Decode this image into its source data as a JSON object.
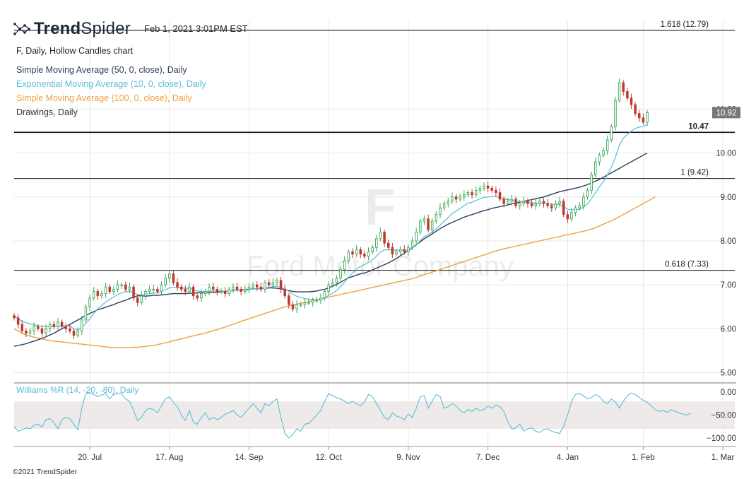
{
  "header": {
    "logo_text_bold": "Trend",
    "logo_text_light": "Spider",
    "timestamp": "Feb 1, 2021 3:01PM EST"
  },
  "legend": {
    "chart_title": "F, Daily, Hollow Candles chart",
    "items": [
      {
        "label": "Simple Moving Average (50, 0, close), Daily",
        "color": "#2c3e5c"
      },
      {
        "label": "Exponential Moving Average (10, 0, close), Daily",
        "color": "#5bbcd8"
      },
      {
        "label": "Simple Moving Average (100, 0, close), Daily",
        "color": "#f0a040"
      },
      {
        "label": "Drawings, Daily",
        "color": "#333333"
      }
    ]
  },
  "watermark": {
    "ticker": "F",
    "company": "Ford Motor Company"
  },
  "footer": {
    "copyright": "©2021 TrendSpider"
  },
  "colors": {
    "up": "#3aa757",
    "down": "#c0392b",
    "grid": "#e6e6e6"
  },
  "chart_data": {
    "type": "candlestick",
    "price_axis": {
      "ylim": [
        4.8,
        13.0
      ],
      "ticks": [
        "5.00",
        "6.00",
        "7.00",
        "8.00",
        "9.00",
        "10.00",
        "11.00"
      ]
    },
    "x_ticks": [
      {
        "label": "20. Jul",
        "index": 19
      },
      {
        "label": "17. Aug",
        "index": 39
      },
      {
        "label": "14. Sep",
        "index": 59
      },
      {
        "label": "12. Oct",
        "index": 79
      },
      {
        "label": "9. Nov",
        "index": 99
      },
      {
        "label": "7. Dec",
        "index": 119
      },
      {
        "label": "4. Jan",
        "index": 139
      },
      {
        "label": "1. Feb",
        "index": 158
      },
      {
        "label": "1. Mar",
        "index": 178
      }
    ],
    "x_range": [
      0,
      181
    ],
    "last_price": {
      "label": "10.92",
      "value": 10.92
    },
    "horizontal_levels": [
      {
        "value": 12.79,
        "label": "1.618 (12.79)",
        "bold": false
      },
      {
        "value": 10.47,
        "label": "10.47",
        "bold": true
      },
      {
        "value": 9.42,
        "label": "1 (9.42)",
        "bold": false
      },
      {
        "value": 7.33,
        "label": "0.618 (7.33)",
        "bold": false
      }
    ],
    "closes": [
      6.25,
      6.1,
      5.95,
      5.9,
      5.95,
      6.05,
      6.0,
      5.9,
      6.0,
      6.1,
      6.05,
      6.15,
      6.05,
      6.0,
      5.95,
      5.85,
      5.95,
      6.2,
      6.5,
      6.7,
      6.85,
      6.75,
      6.8,
      6.95,
      6.85,
      6.9,
      7.0,
      7.0,
      6.9,
      6.95,
      6.7,
      6.6,
      6.75,
      6.85,
      6.9,
      6.9,
      6.85,
      7.0,
      7.15,
      7.25,
      7.05,
      6.95,
      6.9,
      6.85,
      6.95,
      6.75,
      6.7,
      6.8,
      6.85,
      6.95,
      6.9,
      6.85,
      6.85,
      6.8,
      6.9,
      6.95,
      6.9,
      6.85,
      6.9,
      6.95,
      7.0,
      6.95,
      6.9,
      7.05,
      7.0,
      7.05,
      7.1,
      6.9,
      6.75,
      6.55,
      6.45,
      6.55,
      6.55,
      6.6,
      6.6,
      6.65,
      6.65,
      6.7,
      6.85,
      7.0,
      7.05,
      7.15,
      7.35,
      7.55,
      7.75,
      7.7,
      7.8,
      7.7,
      7.65,
      7.75,
      7.85,
      8.05,
      8.2,
      7.95,
      7.85,
      7.7,
      7.75,
      7.8,
      7.75,
      7.85,
      8.0,
      8.2,
      8.45,
      8.5,
      8.25,
      8.45,
      8.6,
      8.75,
      8.85,
      8.9,
      9.0,
      8.95,
      9.0,
      9.05,
      9.1,
      9.05,
      9.15,
      9.2,
      9.25,
      9.2,
      9.15,
      9.1,
      8.95,
      8.85,
      8.9,
      8.95,
      8.8,
      8.85,
      8.9,
      8.85,
      8.8,
      8.85,
      8.9,
      8.85,
      8.8,
      8.75,
      8.85,
      8.9,
      8.6,
      8.5,
      8.65,
      8.75,
      8.8,
      9.0,
      9.15,
      9.5,
      9.8,
      9.95,
      10.05,
      10.3,
      10.6,
      11.2,
      11.6,
      11.4,
      11.25,
      11.1,
      10.9,
      10.8,
      10.7,
      10.92
    ],
    "ema_10": [
      6.28,
      6.24,
      6.17,
      6.14,
      6.11,
      6.09,
      6.07,
      6.06,
      6.05,
      6.05,
      6.05,
      6.06,
      6.07,
      6.07,
      6.06,
      6.0,
      5.98,
      6.03,
      6.12,
      6.23,
      6.35,
      6.45,
      6.53,
      6.61,
      6.67,
      6.72,
      6.78,
      6.82,
      6.84,
      6.86,
      6.82,
      6.78,
      6.77,
      6.78,
      6.8,
      6.81,
      6.82,
      6.85,
      6.89,
      6.93,
      6.94,
      6.94,
      6.93,
      6.92,
      6.92,
      6.89,
      6.86,
      6.85,
      6.85,
      6.86,
      6.86,
      6.86,
      6.86,
      6.85,
      6.86,
      6.87,
      6.88,
      6.88,
      6.88,
      6.89,
      6.91,
      6.91,
      6.91,
      6.93,
      6.94,
      6.96,
      6.97,
      6.94,
      6.91,
      6.85,
      6.78,
      6.74,
      6.71,
      6.69,
      6.67,
      6.67,
      6.66,
      6.67,
      6.7,
      6.76,
      6.81,
      6.87,
      6.96,
      7.06,
      7.18,
      7.27,
      7.36,
      7.42,
      7.46,
      7.51,
      7.57,
      7.65,
      7.75,
      7.79,
      7.8,
      7.79,
      7.79,
      7.79,
      7.79,
      7.8,
      7.84,
      7.9,
      8.01,
      8.1,
      8.14,
      8.2,
      8.27,
      8.36,
      8.45,
      8.53,
      8.62,
      8.68,
      8.74,
      8.8,
      8.86,
      8.88,
      8.92,
      8.96,
      8.99,
      9.0,
      9.01,
      9.01,
      8.98,
      8.96,
      8.94,
      8.93,
      8.91,
      8.89,
      8.88,
      8.88,
      8.87,
      8.86,
      8.86,
      8.86,
      8.85,
      8.83,
      8.82,
      8.83,
      8.78,
      8.72,
      8.71,
      8.71,
      8.72,
      8.77,
      8.84,
      8.96,
      9.1,
      9.23,
      9.35,
      9.5,
      9.67,
      9.9,
      10.18,
      10.34,
      10.42,
      10.5,
      10.56,
      10.59,
      10.6,
      10.66
    ],
    "sma_50": [
      5.6,
      5.62,
      5.64,
      5.66,
      5.69,
      5.72,
      5.75,
      5.78,
      5.82,
      5.86,
      5.9,
      5.95,
      6.0,
      6.05,
      6.1,
      6.15,
      6.2,
      6.25,
      6.3,
      6.35,
      6.39,
      6.43,
      6.46,
      6.49,
      6.52,
      6.55,
      6.59,
      6.62,
      6.65,
      6.69,
      6.72,
      6.75,
      6.75,
      6.74,
      6.75,
      6.76,
      6.76,
      6.77,
      6.78,
      6.79,
      6.8,
      6.8,
      6.8,
      6.8,
      6.81,
      6.81,
      6.82,
      6.82,
      6.82,
      6.82,
      6.83,
      6.83,
      6.84,
      6.85,
      6.86,
      6.87,
      6.88,
      6.88,
      6.89,
      6.9,
      6.91,
      6.91,
      6.92,
      6.92,
      6.93,
      6.93,
      6.92,
      6.91,
      6.89,
      6.87,
      6.85,
      6.84,
      6.84,
      6.84,
      6.84,
      6.85,
      6.86,
      6.88,
      6.9,
      6.93,
      6.97,
      7.01,
      7.06,
      7.11,
      7.16,
      7.19,
      7.22,
      7.25,
      7.27,
      7.3,
      7.34,
      7.38,
      7.42,
      7.46,
      7.5,
      7.55,
      7.6,
      7.66,
      7.72,
      7.78,
      7.84,
      7.91,
      7.98,
      8.05,
      8.1,
      8.16,
      8.22,
      8.28,
      8.33,
      8.38,
      8.42,
      8.46,
      8.5,
      8.54,
      8.57,
      8.6,
      8.63,
      8.66,
      8.69,
      8.71,
      8.74,
      8.76,
      8.78,
      8.8,
      8.82,
      8.84,
      8.86,
      8.88,
      8.9,
      8.92,
      8.94,
      8.96,
      8.98,
      9.0,
      9.03,
      9.06,
      9.09,
      9.12,
      9.14,
      9.16,
      9.18,
      9.2,
      9.22,
      9.25,
      9.28,
      9.32,
      9.36,
      9.4,
      9.45,
      9.5,
      9.55,
      9.6,
      9.65,
      9.7,
      9.75,
      9.8,
      9.85,
      9.9,
      9.95,
      10.0
    ],
    "sma_100": [
      6.0,
      5.95,
      5.9,
      5.86,
      5.83,
      5.81,
      5.79,
      5.77,
      5.75,
      5.73,
      5.72,
      5.71,
      5.7,
      5.69,
      5.68,
      5.67,
      5.66,
      5.65,
      5.64,
      5.63,
      5.62,
      5.61,
      5.6,
      5.59,
      5.58,
      5.57,
      5.57,
      5.57,
      5.57,
      5.57,
      5.58,
      5.58,
      5.59,
      5.6,
      5.61,
      5.62,
      5.64,
      5.66,
      5.68,
      5.7,
      5.73,
      5.75,
      5.77,
      5.79,
      5.82,
      5.84,
      5.86,
      5.88,
      5.9,
      5.93,
      5.96,
      5.98,
      6.01,
      6.04,
      6.07,
      6.1,
      6.13,
      6.17,
      6.2,
      6.23,
      6.26,
      6.29,
      6.32,
      6.35,
      6.38,
      6.41,
      6.44,
      6.47,
      6.5,
      6.52,
      6.54,
      6.56,
      6.58,
      6.6,
      6.62,
      6.64,
      6.66,
      6.68,
      6.7,
      6.72,
      6.74,
      6.76,
      6.78,
      6.8,
      6.82,
      6.84,
      6.86,
      6.88,
      6.9,
      6.92,
      6.94,
      6.96,
      6.98,
      7.0,
      7.02,
      7.04,
      7.06,
      7.08,
      7.1,
      7.12,
      7.14,
      7.17,
      7.2,
      7.23,
      7.26,
      7.29,
      7.32,
      7.35,
      7.38,
      7.41,
      7.44,
      7.47,
      7.5,
      7.53,
      7.56,
      7.59,
      7.62,
      7.65,
      7.68,
      7.71,
      7.74,
      7.77,
      7.8,
      7.82,
      7.84,
      7.86,
      7.88,
      7.9,
      7.92,
      7.94,
      7.96,
      7.98,
      8.0,
      8.02,
      8.04,
      8.06,
      8.08,
      8.1,
      8.12,
      8.14,
      8.16,
      8.18,
      8.2,
      8.22,
      8.24,
      8.27,
      8.3,
      8.34,
      8.38,
      8.42,
      8.46,
      8.5,
      8.55,
      8.6,
      8.65,
      8.7,
      8.75,
      8.8,
      8.85,
      8.9,
      8.95,
      9.0
    ],
    "williams_r": {
      "label": "Williams %R (14, -20, -80), Daily",
      "ylim": [
        -100,
        0
      ],
      "ticks": [
        "0.00",
        "−50.00",
        "−100.00"
      ],
      "band": [
        -80,
        -20
      ],
      "values": [
        -75,
        -85,
        -82,
        -78,
        -80,
        -72,
        -70,
        -76,
        -60,
        -58,
        -66,
        -80,
        -60,
        -55,
        -58,
        -70,
        -82,
        -34,
        -3,
        -2,
        -5,
        -10,
        -6,
        -3,
        -15,
        -5,
        -3,
        -4,
        -15,
        -20,
        -40,
        -62,
        -55,
        -40,
        -35,
        -38,
        -45,
        -30,
        -15,
        -10,
        -22,
        -32,
        -50,
        -62,
        -40,
        -65,
        -70,
        -55,
        -45,
        -60,
        -55,
        -60,
        -55,
        -48,
        -45,
        -40,
        -50,
        -55,
        -45,
        -35,
        -25,
        -35,
        -45,
        -25,
        -30,
        -20,
        -15,
        -55,
        -90,
        -100,
        -92,
        -80,
        -85,
        -70,
        -68,
        -60,
        -50,
        -40,
        -20,
        -3,
        -8,
        -12,
        -15,
        -20,
        -25,
        -20,
        -25,
        -30,
        -22,
        -5,
        -10,
        -25,
        -40,
        -55,
        -60,
        -45,
        -52,
        -55,
        -60,
        -48,
        -55,
        -35,
        -10,
        -8,
        -35,
        -20,
        -5,
        -10,
        -35,
        -32,
        -25,
        -30,
        -40,
        -45,
        -38,
        -42,
        -35,
        -40,
        -38,
        -30,
        -35,
        -28,
        -32,
        -42,
        -65,
        -80,
        -78,
        -70,
        -85,
        -80,
        -78,
        -85,
        -88,
        -82,
        -80,
        -85,
        -88,
        -90,
        -75,
        -50,
        -20,
        -5,
        -3,
        -8,
        -15,
        -12,
        -5,
        -10,
        -20,
        -25,
        -15,
        -22,
        -35,
        -20,
        -8,
        -2,
        -5,
        -12,
        -18,
        -22,
        -30,
        -38,
        -42,
        -40,
        -44,
        -38,
        -42,
        -45,
        -48,
        -50,
        -45
      ]
    }
  }
}
